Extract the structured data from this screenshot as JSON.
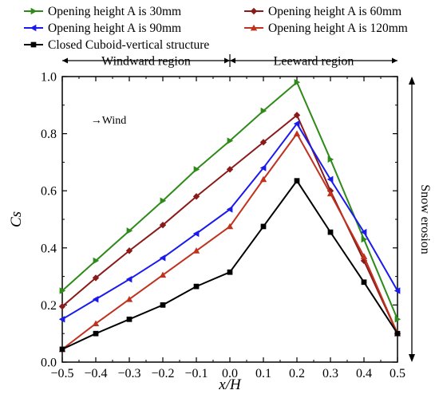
{
  "chart_data": {
    "type": "line",
    "xlabel": "x/H",
    "ylabel": "Cs",
    "xlim": [
      -0.5,
      0.5
    ],
    "ylim": [
      0.0,
      1.0
    ],
    "x_ticks": [
      "−0.5",
      "−0.4",
      "−0.3",
      "−0.2",
      "−0.1",
      "0.0",
      "0.1",
      "0.2",
      "0.3",
      "0.4",
      "0.5"
    ],
    "y_ticks": [
      "0.0",
      "0.2",
      "0.4",
      "0.6",
      "0.8",
      "1.0"
    ],
    "x": [
      -0.5,
      -0.4,
      -0.3,
      -0.2,
      -0.1,
      0.0,
      0.1,
      0.2,
      0.3,
      0.4,
      0.5
    ],
    "series": [
      {
        "name": "Opening height A is 30mm",
        "color": "#2e8b1a",
        "marker": "triangle-right",
        "values": [
          0.25,
          0.355,
          0.46,
          0.565,
          0.675,
          0.775,
          0.88,
          0.98,
          0.71,
          0.43,
          0.15
        ]
      },
      {
        "name": "Opening height A is 60mm",
        "color": "#8b1a1a",
        "marker": "diamond",
        "values": [
          0.195,
          0.295,
          0.39,
          0.48,
          0.58,
          0.675,
          0.77,
          0.865,
          0.6,
          0.355,
          0.1
        ]
      },
      {
        "name": "Opening height A is 90mm",
        "color": "#1a1aee",
        "marker": "triangle-left",
        "values": [
          0.15,
          0.22,
          0.29,
          0.365,
          0.45,
          0.535,
          0.68,
          0.835,
          0.64,
          0.455,
          0.25
        ]
      },
      {
        "name": "Opening height A is 120mm",
        "color": "#c0321e",
        "marker": "triangle-up",
        "values": [
          0.045,
          0.135,
          0.22,
          0.305,
          0.39,
          0.475,
          0.64,
          0.8,
          0.59,
          0.37,
          0.1
        ]
      },
      {
        "name": "Closed Cuboid-vertical structure",
        "color": "#000000",
        "marker": "square",
        "values": [
          0.045,
          0.1,
          0.15,
          0.2,
          0.265,
          0.315,
          0.475,
          0.635,
          0.455,
          0.28,
          0.1
        ]
      }
    ],
    "legend": {
      "placement": "top, two columns"
    },
    "regions": [
      {
        "label": "Windward region",
        "x_range": [
          -0.5,
          0.0
        ]
      },
      {
        "label": "Leeward region",
        "x_range": [
          0.0,
          0.5
        ]
      }
    ],
    "annotations": {
      "wind": "→Wind",
      "right_label": "Snow erosion"
    },
    "grid": false
  }
}
